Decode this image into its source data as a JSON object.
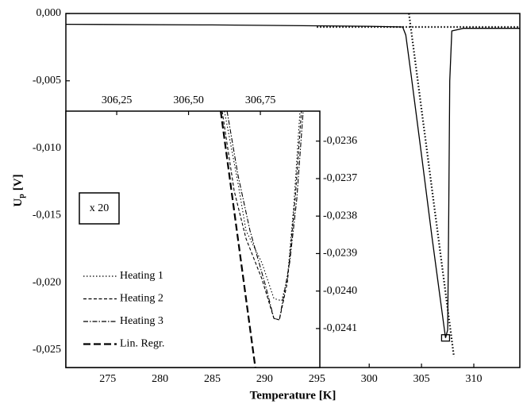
{
  "chart_data": [
    {
      "type": "line",
      "xlabel": "Temperature [K]",
      "ylabel": "U",
      "ylabel_subscript": "p",
      "ylabel_unit": "[V]",
      "xlim": [
        271,
        314.4
      ],
      "ylim": [
        -0.0263,
        0
      ],
      "xticks": [
        275,
        280,
        285,
        290,
        295,
        300,
        305,
        310
      ],
      "yticks": [
        {
          "value": 0,
          "label": "0,000"
        },
        {
          "value": -0.005,
          "label": "-0,005"
        },
        {
          "value": -0.01,
          "label": "-0,010"
        },
        {
          "value": -0.015,
          "label": "-0,015"
        },
        {
          "value": -0.02,
          "label": "-0,020"
        },
        {
          "value": -0.025,
          "label": "-0,025"
        }
      ],
      "series": [
        {
          "style": "solid",
          "color": "#000000",
          "x": [
            271,
            285,
            300,
            303.2,
            303.5,
            304,
            305,
            306,
            307,
            307.3,
            307.5,
            307.6,
            307.7,
            307.9,
            309,
            314.4
          ],
          "values": [
            -0.0008,
            -0.00085,
            -0.00095,
            -0.001,
            -0.0016,
            -0.0045,
            -0.0105,
            -0.0166,
            -0.0224,
            -0.0241,
            -0.0235,
            -0.015,
            -0.005,
            -0.0013,
            -0.0011,
            -0.0011
          ]
        },
        {
          "style": "dotted",
          "color": "#000000",
          "x": [
            295,
            314.4
          ],
          "values": [
            -0.001,
            -0.001
          ]
        },
        {
          "style": "dotted",
          "color": "#000000",
          "x": [
            303.8,
            308.1
          ],
          "values": [
            0,
            -0.0255
          ]
        }
      ],
      "highlight": {
        "x": 307.3,
        "y": -0.0241
      }
    },
    {
      "type": "line",
      "annotation": "x 20",
      "xaxis": "top",
      "yaxis": "right",
      "legend": "lower left",
      "xlim": [
        306.073,
        306.957
      ],
      "ylim": [
        -0.024204,
        -0.02352
      ],
      "xticks": [
        {
          "value": 306.25,
          "label": "306,25"
        },
        {
          "value": 306.5,
          "label": "306,50"
        },
        {
          "value": 306.75,
          "label": "306,75"
        }
      ],
      "yticks": [
        {
          "value": -0.0236,
          "label": "-0,0236"
        },
        {
          "value": -0.0237,
          "label": "-0,0237"
        },
        {
          "value": -0.0238,
          "label": "-0,0238"
        },
        {
          "value": -0.0239,
          "label": "-0,0239"
        },
        {
          "value": -0.024,
          "label": "-0,0240"
        },
        {
          "value": -0.0241,
          "label": "-0,0241"
        }
      ],
      "series": [
        {
          "name": "Heating 1",
          "style": "dotted",
          "color": "#000000",
          "x": [
            306.625,
            306.672,
            306.7,
            306.755,
            306.797,
            306.824,
            306.844,
            306.866,
            306.888
          ],
          "values": [
            -0.02352,
            -0.023711,
            -0.023839,
            -0.023924,
            -0.02402,
            -0.024026,
            -0.023967,
            -0.023775,
            -0.02352
          ]
        },
        {
          "name": "Heating 2",
          "style": "dashed",
          "color": "#000000",
          "x": [
            306.617,
            306.659,
            306.7,
            306.755,
            306.797,
            306.816,
            306.844,
            306.871,
            306.893
          ],
          "values": [
            -0.02352,
            -0.023733,
            -0.02386,
            -0.023967,
            -0.024073,
            -0.024077,
            -0.023977,
            -0.023754,
            -0.02352
          ]
        },
        {
          "name": "Heating 3",
          "style": "dashdot",
          "color": "#000000",
          "x": [
            306.634,
            306.672,
            306.714,
            306.769,
            306.797,
            306.816,
            306.852,
            306.877,
            306.899
          ],
          "values": [
            -0.02352,
            -0.02369,
            -0.023839,
            -0.023988,
            -0.024073,
            -0.024077,
            -0.023924,
            -0.023754,
            -0.02352
          ]
        },
        {
          "name": "Lin. Regr.",
          "style": "longdash",
          "color": "#000000",
          "x": [
            306.612,
            306.733
          ],
          "values": [
            -0.02352,
            -0.024207
          ]
        }
      ]
    }
  ]
}
